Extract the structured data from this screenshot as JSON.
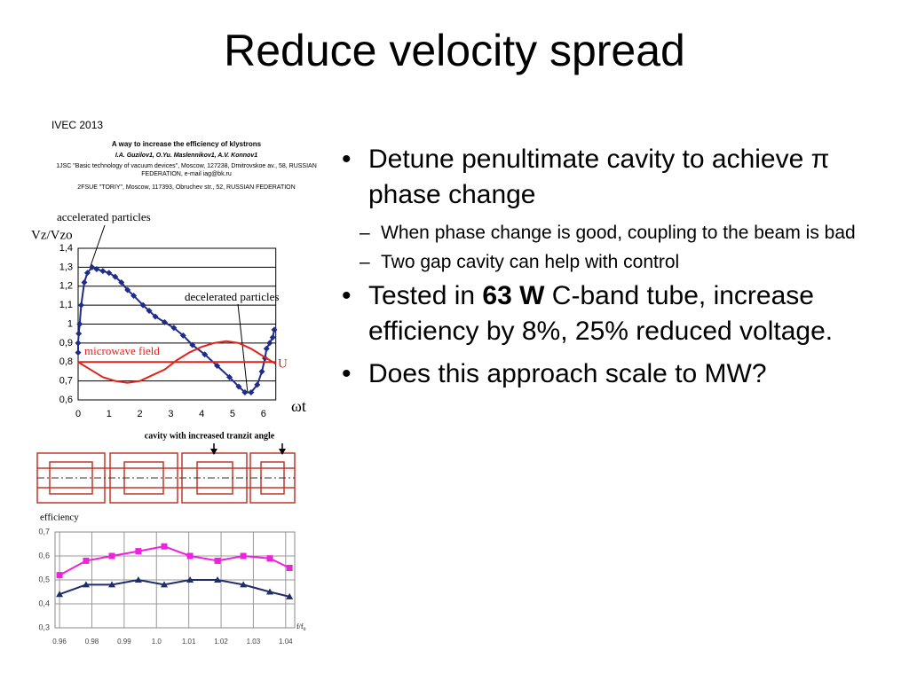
{
  "slide": {
    "title": "Reduce velocity spread",
    "source": "IVEC 2013",
    "paper": {
      "title": "A way to increase the efficiency of klystrons",
      "authors": "I.A. Guzilov1, O.Yu. Maslennikov1, A.V. Konnov1",
      "affiliations": [
        "1JSC \"Basic technology of vacuum devices\", Moscow, 127238, Dmitrovskoe av., 58, RUSSIAN FEDERATION, e-mail iag@bk.ru",
        "2FSUE \"TORIY\", Moscow, 117393, Obruchev str., 52, RUSSIAN FEDERATION"
      ]
    },
    "cavity_label": "cavity with increased tranzit angle",
    "bullets": [
      {
        "text": "Detune penultimate cavity to achieve π phase change",
        "sub": [
          "When phase change is good, coupling to the beam is bad",
          "Two gap cavity can help with control"
        ]
      },
      {
        "parts": [
          {
            "text": "Tested in "
          },
          {
            "text": "63 W",
            "bold": true
          },
          {
            "text": " C-band tube, increase efficiency by 8%, 25% reduced voltage."
          }
        ]
      },
      {
        "text": "Does this approach scale to MW?"
      }
    ]
  },
  "chart_data": [
    {
      "type": "line",
      "ylabel": "Vz/Vzo",
      "xlabel": "ωt",
      "xlim": [
        0,
        6.4
      ],
      "ylim": [
        0.6,
        1.4
      ],
      "xticks": [
        0,
        1,
        2,
        3,
        4,
        5,
        6
      ],
      "yticks": [
        {
          "value": 0.6,
          "label": "0,6"
        },
        {
          "value": 0.7,
          "label": "0,7"
        },
        {
          "value": 0.8,
          "label": "0,8"
        },
        {
          "value": 0.9,
          "label": "0,9"
        },
        1,
        {
          "value": 1.1,
          "label": "1,1"
        },
        {
          "value": 1.2,
          "label": "1,2"
        },
        {
          "value": 1.3,
          "label": "1,3"
        },
        {
          "value": 1.4,
          "label": "1,4"
        }
      ],
      "grid": true,
      "annotations": [
        "accelerated particles",
        "decelerated particles"
      ],
      "series": [
        {
          "color": "#1f2d8a",
          "marker": "diamond",
          "x": [
            0,
            0,
            0.02,
            0.05,
            0.1,
            0.2,
            0.3,
            0.45,
            0.6,
            0.8,
            1.0,
            1.2,
            1.4,
            1.6,
            1.8,
            2.1,
            2.3,
            2.5,
            2.8,
            3.1,
            3.4,
            3.7,
            4.1,
            4.5,
            4.9,
            5.2,
            5.4,
            5.6,
            5.8,
            5.95,
            6.05,
            6.1,
            6.2,
            6.3,
            6.35
          ],
          "values": [
            0.85,
            0.9,
            0.95,
            1.0,
            1.1,
            1.22,
            1.27,
            1.3,
            1.29,
            1.28,
            1.27,
            1.25,
            1.22,
            1.18,
            1.15,
            1.1,
            1.07,
            1.04,
            1.01,
            0.98,
            0.94,
            0.89,
            0.84,
            0.78,
            0.72,
            0.67,
            0.64,
            0.64,
            0.68,
            0.75,
            0.82,
            0.87,
            0.9,
            0.93,
            0.97
          ]
        },
        {
          "name": "microwave field",
          "color": "#e0241c",
          "marker": "none",
          "x": [
            0,
            0.4,
            0.8,
            1.2,
            1.6,
            2.0,
            2.4,
            2.8,
            3.2,
            3.6,
            4.0,
            4.4,
            4.8,
            5.2,
            5.6,
            6.0,
            6.4
          ],
          "values": [
            0.8,
            0.76,
            0.72,
            0.7,
            0.69,
            0.7,
            0.73,
            0.76,
            0.81,
            0.85,
            0.88,
            0.9,
            0.91,
            0.9,
            0.87,
            0.83,
            0.79
          ]
        },
        {
          "name": "U",
          "color": "#e0241c",
          "marker": "none",
          "x": [
            0,
            6.4
          ],
          "values": [
            0.8,
            0.8
          ]
        }
      ]
    },
    {
      "type": "line",
      "ylabel": "efficiency",
      "xlabel": "f/f",
      "xlabel_sub": "0",
      "xlim": [
        -0.14,
        7.28
      ],
      "ylim": [
        0.3,
        0.7
      ],
      "xticks": [
        {
          "value": 0,
          "label": "0.96"
        },
        {
          "value": 1,
          "label": "0.98"
        },
        {
          "value": 2,
          "label": "0.99"
        },
        {
          "value": 3,
          "label": "1.0"
        },
        {
          "value": 4,
          "label": "1.01"
        },
        {
          "value": 5,
          "label": "1.02"
        },
        {
          "value": 6,
          "label": "1.03"
        },
        {
          "value": 7,
          "label": "1.04"
        }
      ],
      "yticks": [
        {
          "value": 0.3,
          "label": "0,3"
        },
        {
          "value": 0.4,
          "label": "0,4"
        },
        {
          "value": 0.5,
          "label": "0,5"
        },
        {
          "value": 0.6,
          "label": "0,6"
        },
        {
          "value": 0.7,
          "label": "0,7"
        }
      ],
      "grid": true,
      "series": [
        {
          "color": "#ee22dd",
          "marker": "square",
          "x": [
            0,
            0.82,
            1.62,
            2.44,
            3.24,
            4.04,
            4.89,
            5.69,
            6.51,
            7.12
          ],
          "values": [
            0.52,
            0.58,
            0.6,
            0.62,
            0.64,
            0.6,
            0.58,
            0.6,
            0.59,
            0.55
          ]
        },
        {
          "color": "#1f2d6a",
          "marker": "triangle",
          "x": [
            0,
            0.82,
            1.62,
            2.44,
            3.24,
            4.04,
            4.89,
            5.69,
            6.51,
            7.12
          ],
          "values": [
            0.44,
            0.48,
            0.48,
            0.5,
            0.48,
            0.5,
            0.5,
            0.48,
            0.45,
            0.43
          ]
        }
      ]
    }
  ]
}
